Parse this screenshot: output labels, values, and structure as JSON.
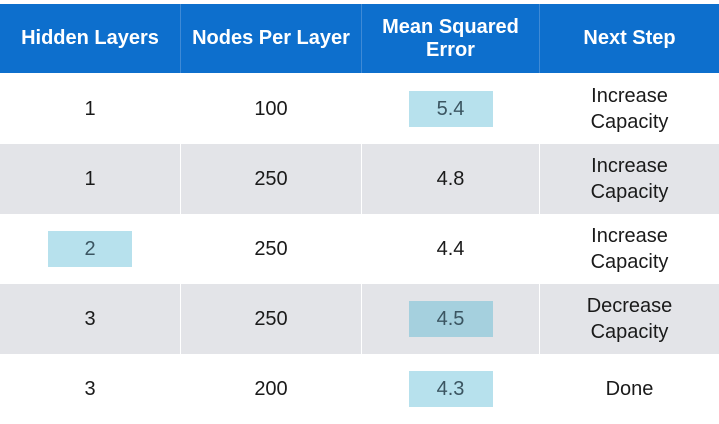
{
  "headers": [
    "Hidden Layers",
    "Nodes Per Layer",
    "Mean Squared\nError",
    "Next Step"
  ],
  "rows": [
    {
      "layers": "1",
      "nodes": "100",
      "mse": "5.4",
      "next": "Increase\nCapacity"
    },
    {
      "layers": "1",
      "nodes": "250",
      "mse": "4.8",
      "next": "Increase\nCapacity"
    },
    {
      "layers": "2",
      "nodes": "250",
      "mse": "4.4",
      "next": "Increase\nCapacity"
    },
    {
      "layers": "3",
      "nodes": "250",
      "mse": "4.5",
      "next": "Decrease\nCapacity"
    },
    {
      "layers": "3",
      "nodes": "200",
      "mse": "4.3",
      "next": "Done"
    }
  ],
  "colors": {
    "header_bg": "#0d6fcd",
    "shade_row": "#e3e4e8",
    "highlight": "#b7e1ed",
    "highlight_dark": "#a5d0de"
  }
}
